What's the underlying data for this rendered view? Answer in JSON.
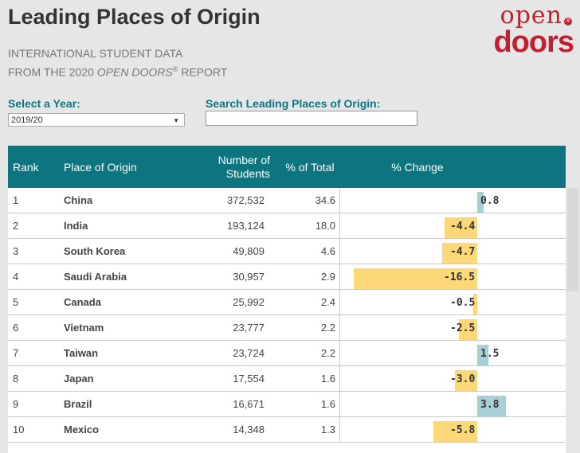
{
  "header": {
    "title": "Leading Places of Origin",
    "subtitle_line1": "INTERNATIONAL STUDENT DATA",
    "subtitle_line2_prefix": "FROM THE 2020 ",
    "subtitle_line2_em": "OPEN DOORS",
    "subtitle_line2_reg": "®",
    "subtitle_line2_suffix": " REPORT"
  },
  "logo": {
    "top": "open",
    "bottom": "doors",
    "reg": "®"
  },
  "controls": {
    "year_label": "Select a Year:",
    "year_value": "2019/20",
    "search_label": "Search Leading Places of Origin:",
    "search_value": ""
  },
  "table": {
    "headers": {
      "rank": "Rank",
      "place": "Place of Origin",
      "num_line1": "Number of",
      "num_line2": "Students",
      "pct": "% of Total",
      "change": "% Change"
    },
    "rows": [
      {
        "rank": "1",
        "place": "China",
        "students": "372,532",
        "pct": "34.6",
        "change": "0.8",
        "change_value": 0.8
      },
      {
        "rank": "2",
        "place": "India",
        "students": "193,124",
        "pct": "18.0",
        "change": "-4.4",
        "change_value": -4.4
      },
      {
        "rank": "3",
        "place": "South Korea",
        "students": "49,809",
        "pct": "4.6",
        "change": "-4.7",
        "change_value": -4.7
      },
      {
        "rank": "4",
        "place": "Saudi Arabia",
        "students": "30,957",
        "pct": "2.9",
        "change": "-16.5",
        "change_value": -16.5
      },
      {
        "rank": "5",
        "place": "Canada",
        "students": "25,992",
        "pct": "2.4",
        "change": "-0.5",
        "change_value": -0.5
      },
      {
        "rank": "6",
        "place": "Vietnam",
        "students": "23,777",
        "pct": "2.2",
        "change": "-2.5",
        "change_value": -2.5
      },
      {
        "rank": "7",
        "place": "Taiwan",
        "students": "23,724",
        "pct": "2.2",
        "change": "1.5",
        "change_value": 1.5
      },
      {
        "rank": "8",
        "place": "Japan",
        "students": "17,554",
        "pct": "1.6",
        "change": "-3.0",
        "change_value": -3.0
      },
      {
        "rank": "9",
        "place": "Brazil",
        "students": "16,671",
        "pct": "1.6",
        "change": "3.8",
        "change_value": 3.8
      },
      {
        "rank": "10",
        "place": "Mexico",
        "students": "14,348",
        "pct": "1.3",
        "change": "-5.8",
        "change_value": -5.8
      }
    ]
  },
  "colors": {
    "header_bg": "#0c7580",
    "label_teal": "#0e7580",
    "brand_red": "#c21f30",
    "negative_bar": "#fcd879",
    "positive_bar": "#a9cfd6"
  }
}
